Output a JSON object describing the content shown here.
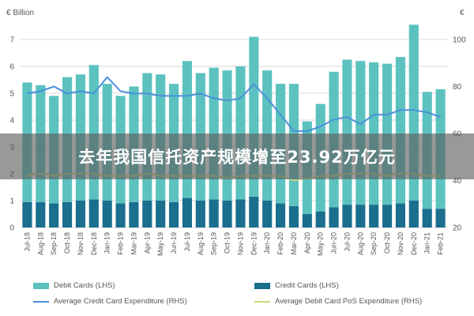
{
  "banner": {
    "text": "去年我国信托资产规模增至23.92万亿元"
  },
  "chart_data": {
    "type": "bar",
    "left_axis_unit": "€ Billion",
    "right_axis_unit": "€",
    "left_ylim": [
      0,
      7
    ],
    "left_ticks": [
      "0",
      "1",
      "2",
      "3",
      "4",
      "5",
      "6",
      "7"
    ],
    "right_ylim": [
      20,
      100
    ],
    "right_ticks": [
      "20",
      "40",
      "60",
      "80",
      "100"
    ],
    "grid": true,
    "legend_placement": "bottom",
    "categories": [
      "Jul-18",
      "Aug-18",
      "Sep-18",
      "Oct-18",
      "Nov-18",
      "Dec-18",
      "Jan-19",
      "Feb-19",
      "Mar-19",
      "Apr-19",
      "May-19",
      "Jun-19",
      "Jul-19",
      "Aug-19",
      "Sep-19",
      "Oct-19",
      "Nov-19",
      "Dec-19",
      "Jan-20",
      "Feb-20",
      "Mar-20",
      "Apr-20",
      "May-20",
      "Jun-20",
      "Jul-20",
      "Aug-20",
      "Sep-20",
      "Oct-20",
      "Nov-20",
      "Dec-20",
      "Jan-21",
      "Feb-21"
    ],
    "series": [
      {
        "name": "Debit Cards (LHS)",
        "kind": "bar",
        "axis": "left",
        "color": "#5cc2c0",
        "values": [
          4.45,
          4.35,
          4.0,
          4.65,
          4.7,
          5.0,
          4.35,
          4.0,
          4.3,
          4.75,
          4.7,
          4.4,
          5.1,
          4.75,
          4.9,
          4.85,
          4.95,
          5.95,
          4.85,
          4.45,
          4.55,
          3.45,
          4.0,
          5.05,
          5.4,
          5.35,
          5.3,
          5.25,
          5.45,
          6.55,
          4.35,
          4.45
        ]
      },
      {
        "name": "Credit Cards (LHS)",
        "kind": "bar",
        "axis": "left",
        "color": "#1a6e8e",
        "values": [
          0.95,
          0.95,
          0.9,
          0.95,
          1.0,
          1.05,
          1.0,
          0.9,
          0.95,
          1.0,
          1.0,
          0.95,
          1.1,
          1.0,
          1.05,
          1.0,
          1.05,
          1.15,
          1.0,
          0.9,
          0.8,
          0.5,
          0.6,
          0.75,
          0.85,
          0.85,
          0.85,
          0.85,
          0.9,
          1.0,
          0.7,
          0.7
        ]
      },
      {
        "name": "Average Credit Card Expenditure (RHS)",
        "kind": "line",
        "axis": "right",
        "color": "#4a90d9",
        "values": [
          77,
          78,
          80,
          77,
          78,
          77,
          84,
          78,
          77,
          77,
          76,
          76,
          76,
          77,
          75,
          74,
          75,
          81,
          75,
          68,
          61,
          61,
          63,
          66,
          67,
          64,
          68,
          68,
          70,
          70,
          69,
          67
        ]
      },
      {
        "name": "Average Debit Card PoS Expenditure (RHS)",
        "kind": "line",
        "axis": "right",
        "color": "#c9d77a",
        "values": [
          42,
          43,
          42,
          43,
          43,
          43,
          42,
          42,
          42,
          43,
          42,
          42,
          42,
          42,
          42,
          41,
          42,
          42,
          42,
          42,
          40,
          41,
          42,
          42,
          43,
          43,
          43,
          42,
          43,
          43,
          42,
          42
        ]
      }
    ]
  }
}
